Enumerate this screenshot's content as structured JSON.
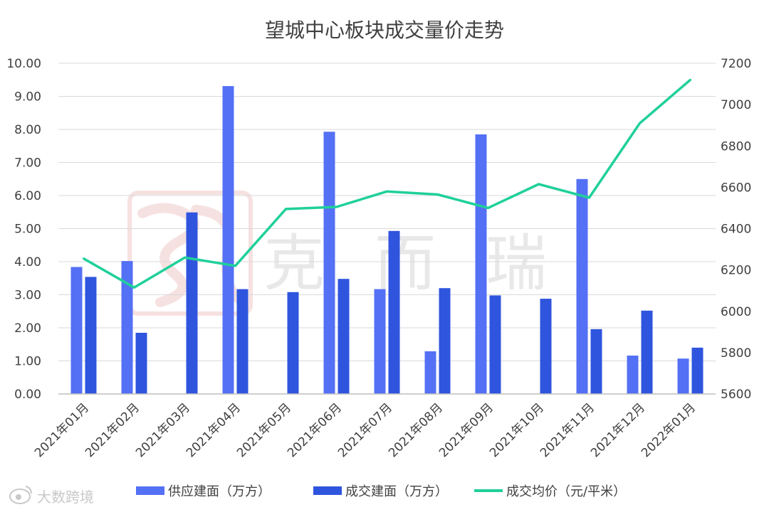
{
  "chart_data": {
    "type": "bar",
    "title": "望城中心板块成交量价走势",
    "categories": [
      "2021年01月",
      "2021年02月",
      "2021年03月",
      "2021年04月",
      "2021年05月",
      "2021年06月",
      "2021年07月",
      "2021年08月",
      "2021年09月",
      "2021年10月",
      "2021年11月",
      "2021年12月",
      "2022年01月"
    ],
    "series": [
      {
        "name": "供应建面（万方）",
        "type": "bar",
        "axis": "left",
        "color": "#5470f5",
        "values": [
          3.84,
          4.02,
          null,
          9.31,
          null,
          7.93,
          3.17,
          1.29,
          7.85,
          null,
          6.5,
          1.16,
          1.07
        ]
      },
      {
        "name": "成交建面（万方）",
        "type": "bar",
        "axis": "left",
        "color": "#2f55de",
        "values": [
          3.54,
          1.85,
          5.49,
          3.17,
          3.08,
          3.48,
          4.93,
          3.2,
          2.98,
          2.88,
          1.96,
          2.52,
          1.4
        ]
      },
      {
        "name": "成交均价（元/平米）",
        "type": "line",
        "axis": "right",
        "color": "#1fd09a",
        "values": [
          6255,
          6115,
          6260,
          6220,
          6495,
          6505,
          6580,
          6565,
          6500,
          6615,
          6550,
          6910,
          7120
        ]
      }
    ],
    "y_left": {
      "range": [
        0,
        10
      ],
      "ticks": [
        "0.00",
        "1.00",
        "2.00",
        "3.00",
        "4.00",
        "5.00",
        "6.00",
        "7.00",
        "8.00",
        "9.00",
        "10.00"
      ]
    },
    "y_right": {
      "range": [
        5600,
        7200
      ],
      "ticks": [
        "5600",
        "5800",
        "6000",
        "6200",
        "6400",
        "6600",
        "6800",
        "7000",
        "7200"
      ]
    },
    "grid": true,
    "legend_position": "bottom"
  },
  "watermark": {
    "text": "克而瑞",
    "icon": "seal-logo"
  },
  "footer": {
    "brand": "大数跨境",
    "icon": "weibo-icon"
  }
}
